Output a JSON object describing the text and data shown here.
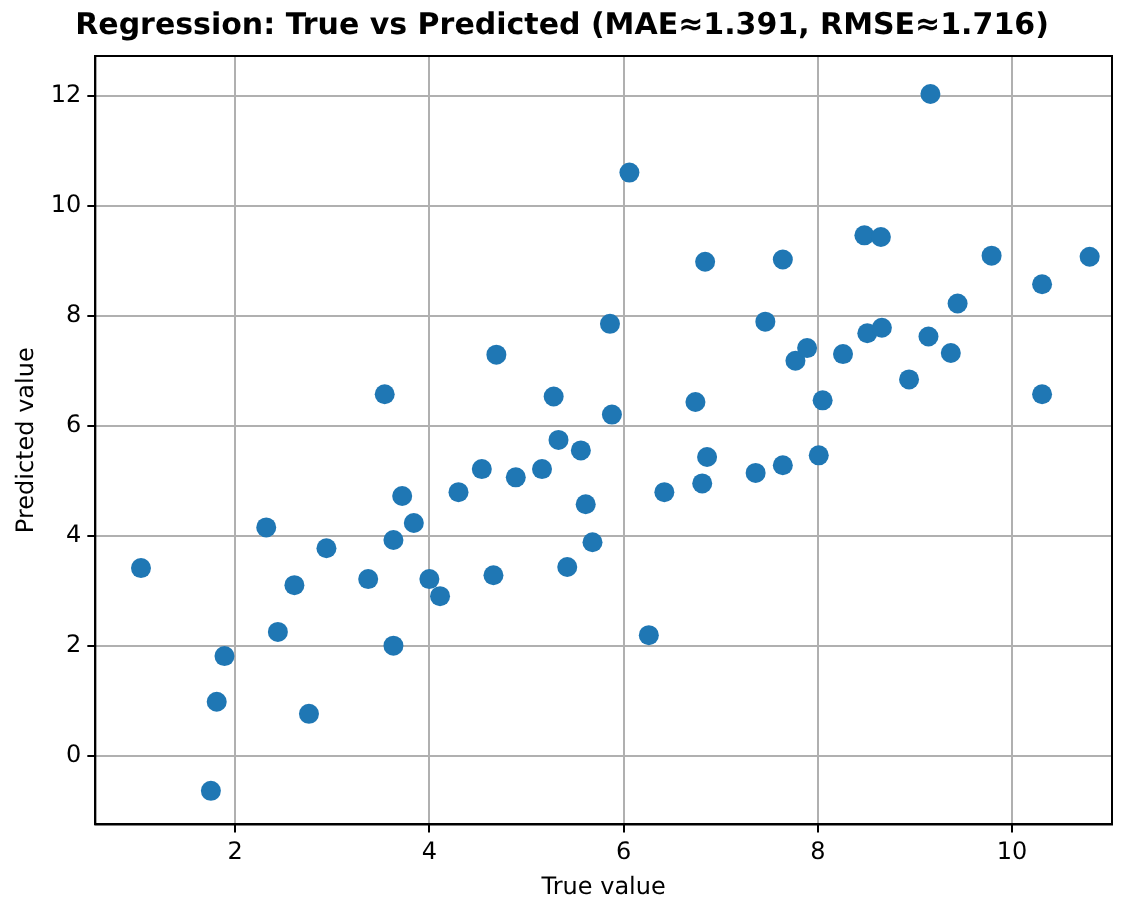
{
  "chart_data": {
    "type": "scatter",
    "title": "Regression: True vs Predicted (MAE≈1.391, RMSE≈1.716)",
    "xlabel": "True value",
    "ylabel": "Predicted value",
    "xlim": [
      0.56,
      11.03
    ],
    "ylim": [
      -1.25,
      12.72
    ],
    "xticks": [
      2,
      4,
      6,
      8,
      10
    ],
    "yticks": [
      0,
      2,
      4,
      6,
      8,
      10,
      12
    ],
    "grid": true,
    "marker": "circle",
    "series": [
      {
        "color": "#1f77b4",
        "x": [
          1.03,
          1.75,
          1.81,
          1.89,
          2.32,
          2.44,
          2.61,
          2.76,
          2.94,
          3.37,
          3.54,
          3.63,
          3.63,
          3.72,
          3.84,
          4.0,
          4.11,
          4.3,
          4.54,
          4.66,
          4.69,
          4.89,
          5.16,
          5.28,
          5.33,
          5.42,
          5.56,
          5.61,
          5.68,
          5.86,
          5.88,
          6.06,
          6.26,
          6.42,
          6.74,
          6.81,
          6.84,
          6.86,
          7.36,
          7.46,
          7.64,
          7.64,
          7.77,
          7.89,
          8.01,
          8.05,
          8.26,
          8.48,
          8.51,
          8.65,
          8.66,
          8.94,
          9.14,
          9.16,
          9.37,
          9.44,
          9.79,
          10.31,
          10.31,
          10.8
        ],
        "values": [
          3.41,
          -0.64,
          0.98,
          1.81,
          4.15,
          2.25,
          3.1,
          0.76,
          3.77,
          3.21,
          6.57,
          2.0,
          3.92,
          4.72,
          4.23,
          3.21,
          2.9,
          4.79,
          5.21,
          3.28,
          7.29,
          5.06,
          5.21,
          6.53,
          5.74,
          3.43,
          5.55,
          4.57,
          3.88,
          7.85,
          6.2,
          10.6,
          2.19,
          4.79,
          6.43,
          4.95,
          8.98,
          5.43,
          5.14,
          7.89,
          5.28,
          9.02,
          7.18,
          7.41,
          5.46,
          6.46,
          7.3,
          9.46,
          7.68,
          9.43,
          7.78,
          6.84,
          7.62,
          12.03,
          7.32,
          8.22,
          9.09,
          8.57,
          6.57,
          9.07
        ]
      }
    ]
  }
}
